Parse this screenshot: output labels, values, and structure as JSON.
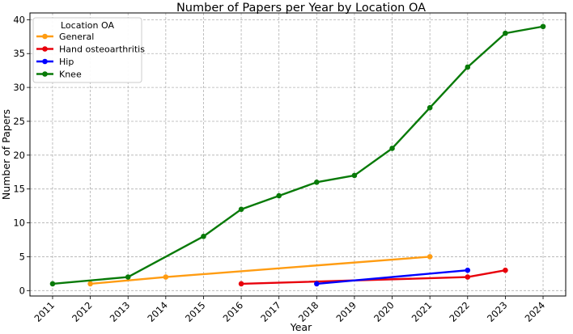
{
  "chart_data": {
    "type": "line",
    "title": "Number of Papers per Year by Location OA",
    "xlabel": "Year",
    "ylabel": "Number of Papers",
    "xlim": [
      2010.4,
      2024.6
    ],
    "ylim": [
      -0.8,
      41
    ],
    "xticks": [
      2011,
      2012,
      2013,
      2014,
      2015,
      2016,
      2017,
      2018,
      2019,
      2020,
      2021,
      2022,
      2023,
      2024
    ],
    "yticks": [
      0,
      5,
      10,
      15,
      20,
      25,
      30,
      35,
      40
    ],
    "grid": true,
    "legend": {
      "title": "Location OA",
      "placement": "top-left"
    },
    "series": [
      {
        "name": "General",
        "color": "#ff9c12",
        "points": [
          [
            2012,
            1
          ],
          [
            2014,
            2
          ],
          [
            2021,
            5
          ]
        ]
      },
      {
        "name": "Hand osteoarthritis",
        "color": "#e8000b",
        "points": [
          [
            2016,
            1
          ],
          [
            2022,
            2
          ],
          [
            2023,
            3
          ]
        ]
      },
      {
        "name": "Hip",
        "color": "#0000ff",
        "points": [
          [
            2018,
            1
          ],
          [
            2022,
            3
          ]
        ]
      },
      {
        "name": "Knee",
        "color": "#087a08",
        "points": [
          [
            2011,
            1
          ],
          [
            2013,
            2
          ],
          [
            2015,
            8
          ],
          [
            2016,
            12
          ],
          [
            2017,
            14
          ],
          [
            2018,
            16
          ],
          [
            2019,
            17
          ],
          [
            2020,
            21
          ],
          [
            2021,
            27
          ],
          [
            2022,
            33
          ],
          [
            2023,
            38
          ],
          [
            2024,
            39
          ]
        ]
      }
    ]
  }
}
